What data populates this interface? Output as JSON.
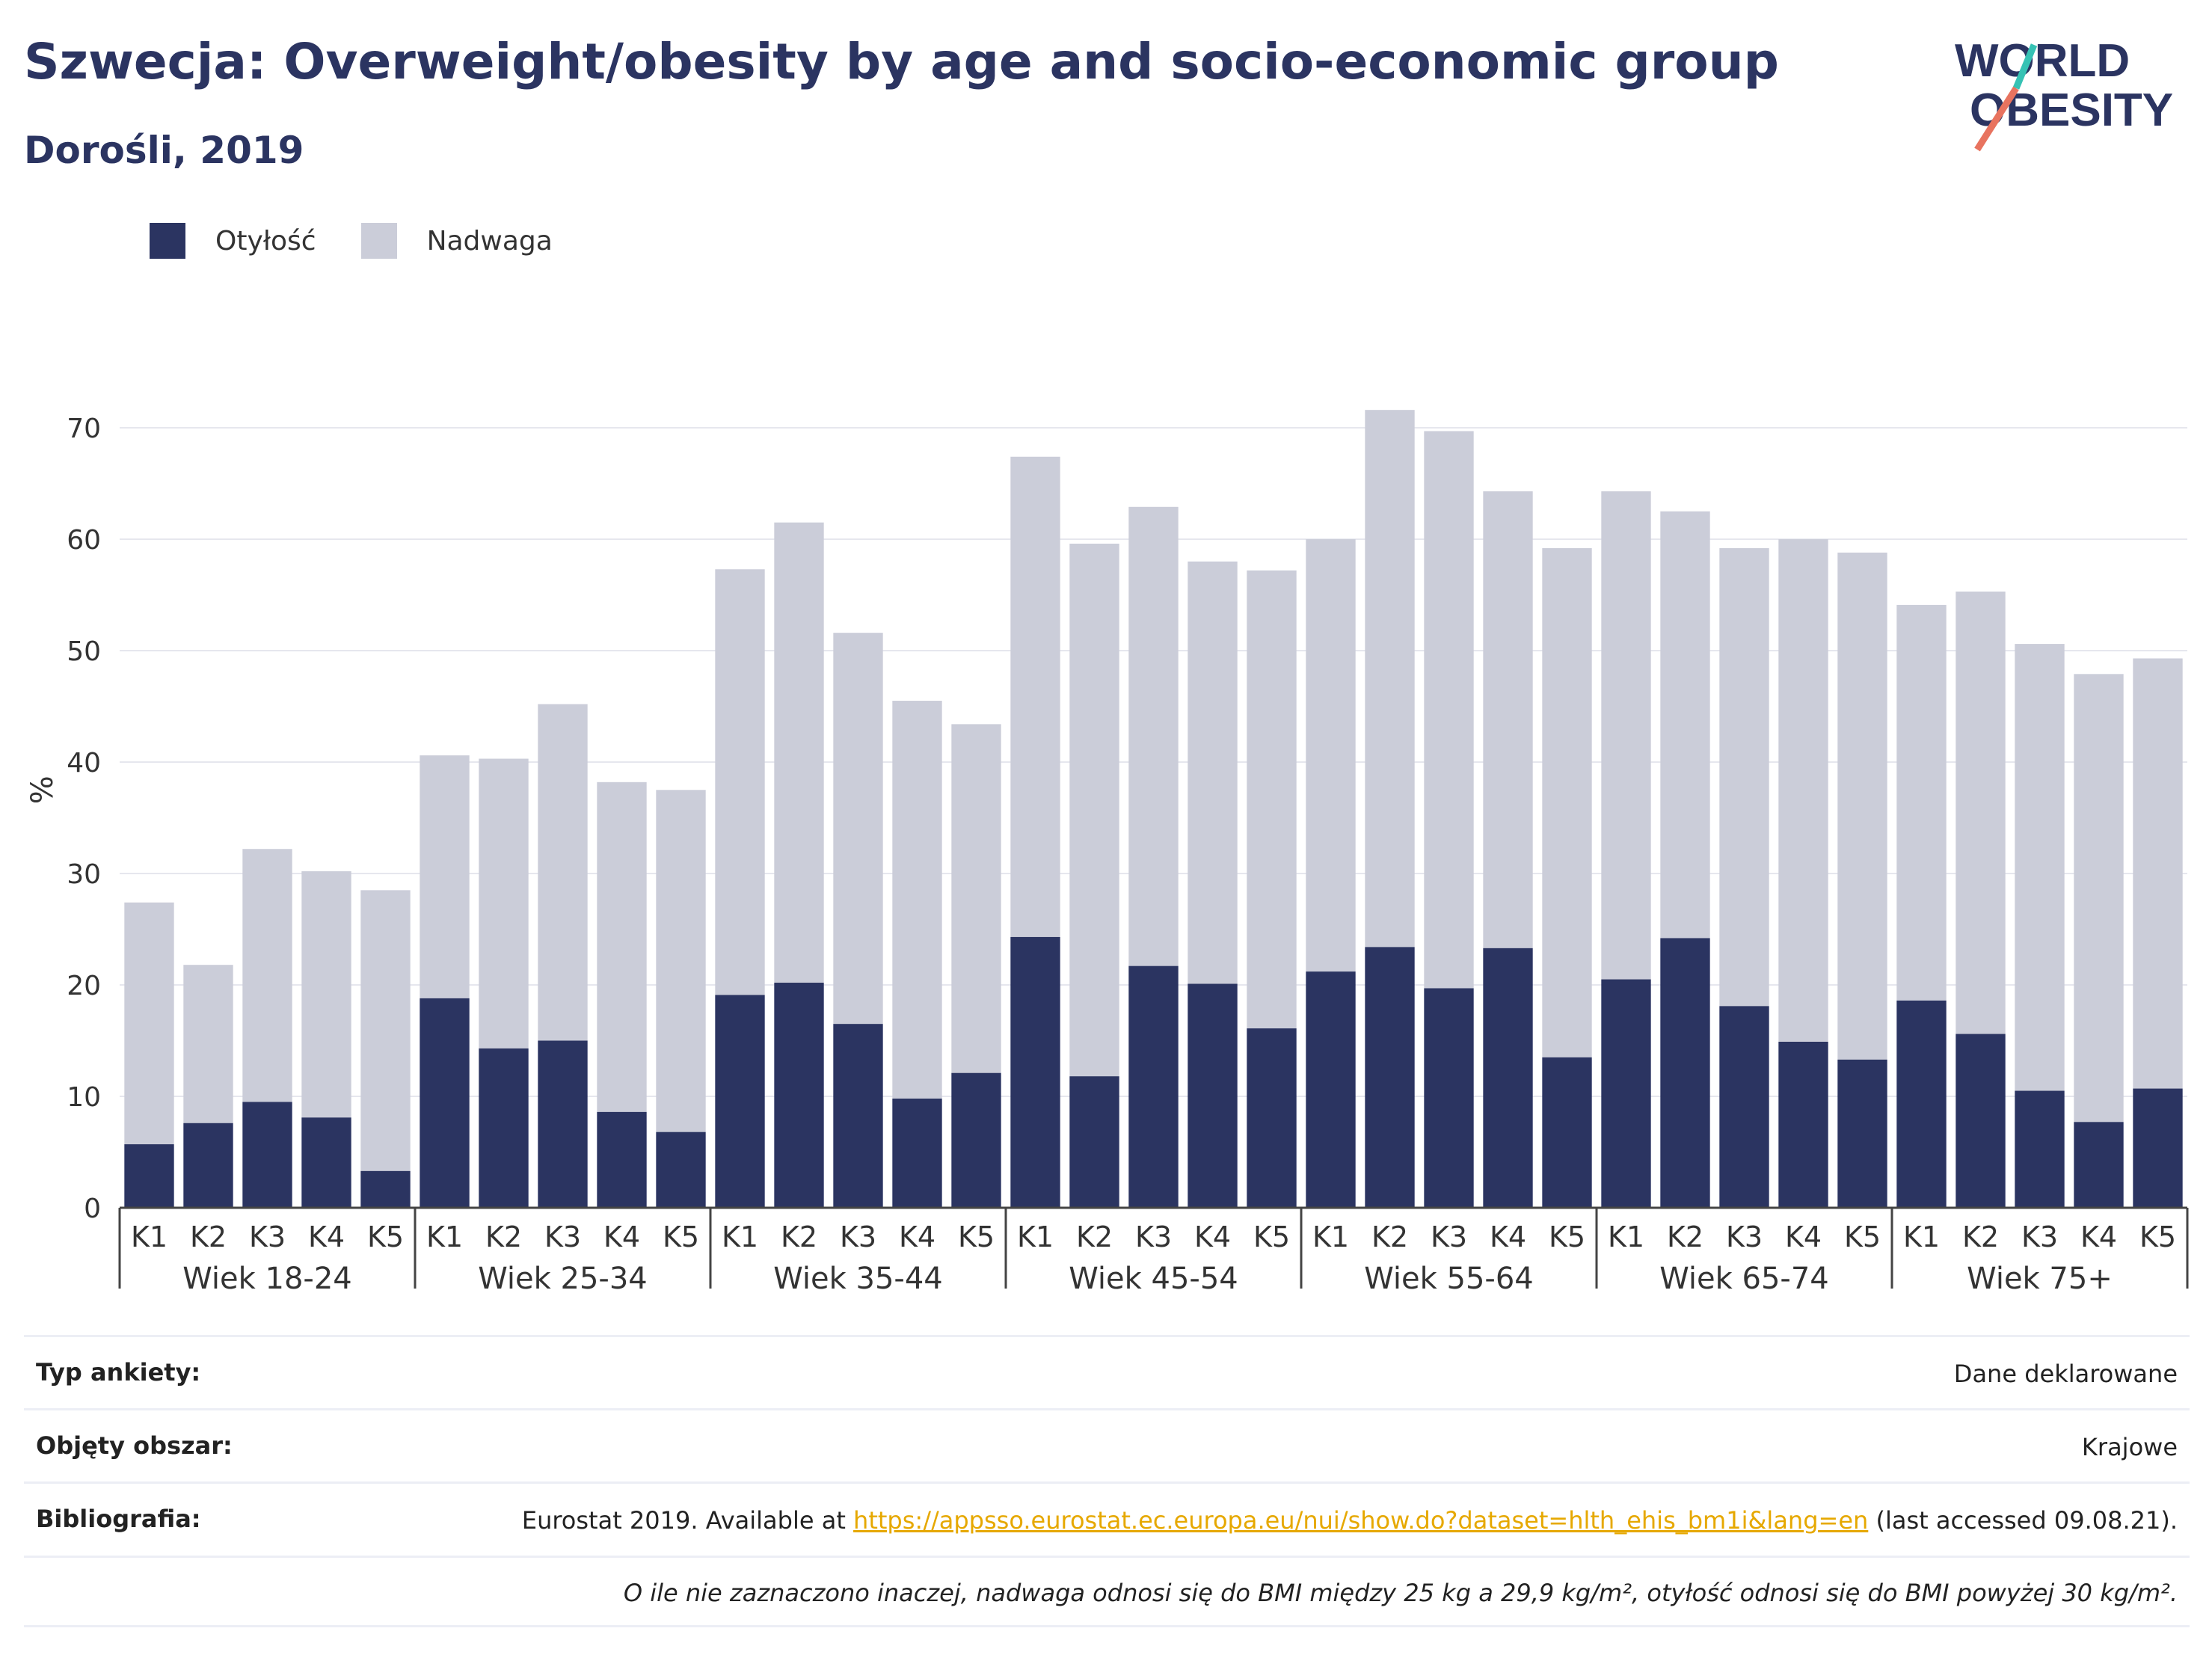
{
  "title": "Szwecja: Overweight/obesity by age and socio-economic group",
  "subtitle": "Dorośli, 2019",
  "logo": {
    "line1": "WORLD",
    "line2": "OBESITY"
  },
  "legend": [
    {
      "label": "Otyłość",
      "color": "#2b3461"
    },
    {
      "label": "Nadwaga",
      "color": "#cbcdd9"
    }
  ],
  "chart_data": {
    "type": "bar",
    "stacked": true,
    "ylabel": "%",
    "ylim": [
      0,
      75
    ],
    "yticks": [
      0,
      10,
      20,
      30,
      40,
      50,
      60,
      70
    ],
    "grid": true,
    "legend_position": "top-left",
    "groups": [
      "Wiek 18-24",
      "Wiek 25-34",
      "Wiek 35-44",
      "Wiek 45-54",
      "Wiek 55-64",
      "Wiek 65-74",
      "Wiek 75+"
    ],
    "subcategories": [
      "K1",
      "K2",
      "K3",
      "K4",
      "K5"
    ],
    "series": [
      {
        "name": "Otyłość",
        "color": "#2b3461",
        "values": [
          5.7,
          7.6,
          9.5,
          8.1,
          3.3,
          18.8,
          14.3,
          15.0,
          8.6,
          6.8,
          19.1,
          20.2,
          16.5,
          9.8,
          12.1,
          24.3,
          11.8,
          21.7,
          20.1,
          16.1,
          21.2,
          23.4,
          19.7,
          23.3,
          13.5,
          20.5,
          24.2,
          18.1,
          14.9,
          13.3,
          18.6,
          15.6,
          10.5,
          7.7,
          10.7
        ]
      },
      {
        "name": "Nadwaga",
        "color": "#cbcdd9",
        "values": [
          21.7,
          14.2,
          22.7,
          22.1,
          25.2,
          21.8,
          26.0,
          30.2,
          29.6,
          30.7,
          38.2,
          41.3,
          35.1,
          35.7,
          31.3,
          43.1,
          47.8,
          41.2,
          37.9,
          41.1,
          38.8,
          48.2,
          50.0,
          41.0,
          45.7,
          43.8,
          38.3,
          41.1,
          45.1,
          45.5,
          35.5,
          39.7,
          40.1,
          40.2,
          38.6
        ]
      }
    ]
  },
  "meta": {
    "survey_label": "Typ ankiety:",
    "survey_value": "Dane deklarowane",
    "area_label": "Objęty obszar:",
    "area_value": "Krajowe",
    "biblio_label": "Bibliografia:",
    "biblio_prefix": "Eurostat 2019. Available at ",
    "biblio_link": "https://appsso.eurostat.ec.europa.eu/nui/show.do?dataset=hlth_ehis_bm1i&lang=en",
    "biblio_suffix": " (last accessed 09.08.21).",
    "note": "O ile nie zaznaczono inaczej, nadwaga odnosi się do BMI między 25 kg a 29,9 kg/m², otyłość odnosi się do BMI powyżej 30 kg/m²."
  }
}
